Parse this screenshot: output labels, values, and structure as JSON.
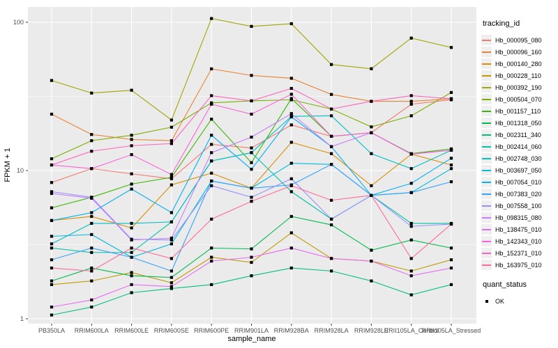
{
  "chart_data": {
    "type": "line",
    "title": "",
    "xlabel": "sample_name",
    "ylabel": "FPKM + 1",
    "y_scale": "log10",
    "ylim": [
      1,
      110
    ],
    "y_ticks": [
      1,
      10,
      100
    ],
    "y_tick_labels": [
      "1",
      "10",
      "100"
    ],
    "y_minor_ticks": [
      3.1623,
      31.623
    ],
    "grid": true,
    "legend_position": "right",
    "panel_bg": "#EBEBEB",
    "grid_color": "#FFFFFF",
    "tick_label_color": "#4D4D4D",
    "axis_title_color": "#000000",
    "point_color": "#000000",
    "point_shape": "square",
    "categories": [
      "PB350LA",
      "RRIM600LA",
      "RRIM600LE",
      "RRIM600SE",
      "RRIM600PE",
      "RRIM901LA",
      "RRIM928BA",
      "RRIM928LA",
      "RRIM928LE",
      "RRII105LA_Control",
      "RRII105LA_Stressed"
    ],
    "series": [
      {
        "name": "Hb_000095_080",
        "color": "#F8766D",
        "values": [
          8.3,
          10.3,
          9.5,
          8.8,
          15.0,
          14.2,
          20.3,
          17.0,
          18.0,
          28.0,
          30.0
        ]
      },
      {
        "name": "Hb_000096_160",
        "color": "#EA8331",
        "values": [
          24.0,
          17.5,
          16.2,
          15.9,
          48.5,
          43.8,
          41.9,
          32.6,
          29.3,
          29.3,
          30.5
        ]
      },
      {
        "name": "Hb_000140_280",
        "color": "#D89000",
        "values": [
          4.6,
          4.9,
          4.1,
          8.0,
          9.6,
          7.6,
          15.5,
          13.0,
          7.9,
          12.9,
          10.9
        ]
      },
      {
        "name": "Hb_000228_110",
        "color": "#C09B00",
        "values": [
          1.7,
          1.8,
          2.05,
          1.75,
          2.6,
          2.4,
          3.8,
          2.55,
          2.45,
          2.1,
          2.5
        ]
      },
      {
        "name": "Hb_000392_190",
        "color": "#A3A500",
        "values": [
          40.5,
          33.3,
          34.8,
          21.9,
          106.0,
          93.8,
          97.8,
          51.9,
          48.6,
          78.2,
          67.6
        ]
      },
      {
        "name": "Hb_000504_070",
        "color": "#7CAE00",
        "values": [
          12.0,
          15.9,
          17.3,
          19.6,
          28.6,
          29.5,
          30.0,
          26.0,
          19.7,
          23.4,
          33.6
        ]
      },
      {
        "name": "Hb_001157_110",
        "color": "#39B600",
        "values": [
          5.6,
          6.6,
          8.1,
          9.0,
          22.2,
          11.3,
          30.6,
          17.0,
          18.0,
          13.0,
          14.0
        ]
      },
      {
        "name": "Hb_001318_050",
        "color": "#00BB4E",
        "values": [
          1.8,
          2.2,
          1.95,
          1.9,
          3.0,
          2.96,
          4.9,
          4.3,
          2.9,
          3.4,
          3.0
        ]
      },
      {
        "name": "Hb_002311_340",
        "color": "#00BF7D",
        "values": [
          1.06,
          1.2,
          1.5,
          1.6,
          1.7,
          1.95,
          2.2,
          2.1,
          1.8,
          1.45,
          1.7
        ]
      },
      {
        "name": "Hb_002414_060",
        "color": "#00C1A3",
        "values": [
          3.0,
          2.8,
          2.8,
          4.5,
          11.6,
          13.2,
          7.2,
          4.7,
          6.8,
          4.4,
          4.4
        ]
      },
      {
        "name": "Hb_002748_030",
        "color": "#00BFC4",
        "values": [
          3.2,
          4.4,
          4.4,
          4.5,
          11.6,
          13.2,
          23.2,
          23.4,
          13.0,
          10.3,
          13.7
        ]
      },
      {
        "name": "Hb_003697_050",
        "color": "#00BAE0",
        "values": [
          3.6,
          3.7,
          2.6,
          3.2,
          8.5,
          7.6,
          11.2,
          11.0,
          6.8,
          7.1,
          10.3
        ]
      },
      {
        "name": "Hb_007054_010",
        "color": "#00B0F6",
        "values": [
          4.6,
          5.2,
          7.5,
          5.2,
          17.3,
          10.2,
          23.0,
          14.5,
          6.8,
          8.2,
          12.1
        ]
      },
      {
        "name": "Hb_007383_020",
        "color": "#35A2FF",
        "values": [
          2.5,
          3.0,
          2.6,
          2.1,
          8.5,
          7.6,
          8.0,
          11.0,
          6.8,
          7.1,
          8.4
        ]
      },
      {
        "name": "Hb_007558_100",
        "color": "#9590FF",
        "values": [
          7.2,
          6.6,
          3.44,
          3.4,
          7.9,
          6.6,
          8.8,
          4.7,
          6.8,
          4.2,
          4.35
        ]
      },
      {
        "name": "Hb_098315_080",
        "color": "#C77CFF",
        "values": [
          7.0,
          6.5,
          3.4,
          3.5,
          13.2,
          16.8,
          24.2,
          14.5,
          18.0,
          12.9,
          13.7
        ]
      },
      {
        "name": "Hb_138475_010",
        "color": "#E76BF3",
        "values": [
          1.2,
          1.34,
          1.7,
          1.65,
          2.45,
          2.6,
          3.0,
          2.55,
          2.45,
          1.95,
          2.2
        ]
      },
      {
        "name": "Hb_142343_010",
        "color": "#FA62DB",
        "values": [
          10.9,
          10.3,
          12.8,
          9.4,
          28.0,
          24.0,
          32.7,
          17.0,
          18.0,
          12.9,
          13.7
        ]
      },
      {
        "name": "Hb_152371_010",
        "color": "#FF62BC",
        "values": [
          10.9,
          13.5,
          14.7,
          15.2,
          32.0,
          29.5,
          35.8,
          26.0,
          29.3,
          32.0,
          30.5
        ]
      },
      {
        "name": "Hb_163975_010",
        "color": "#FF6A98",
        "values": [
          2.2,
          2.1,
          3.0,
          2.55,
          4.7,
          6.2,
          7.9,
          6.3,
          6.8,
          2.55,
          4.35
        ]
      }
    ],
    "legend": {
      "color_title": "tracking_id",
      "shape_title": "quant_status",
      "shape_items": [
        {
          "label": "OK",
          "marker": "black-square"
        }
      ]
    }
  }
}
